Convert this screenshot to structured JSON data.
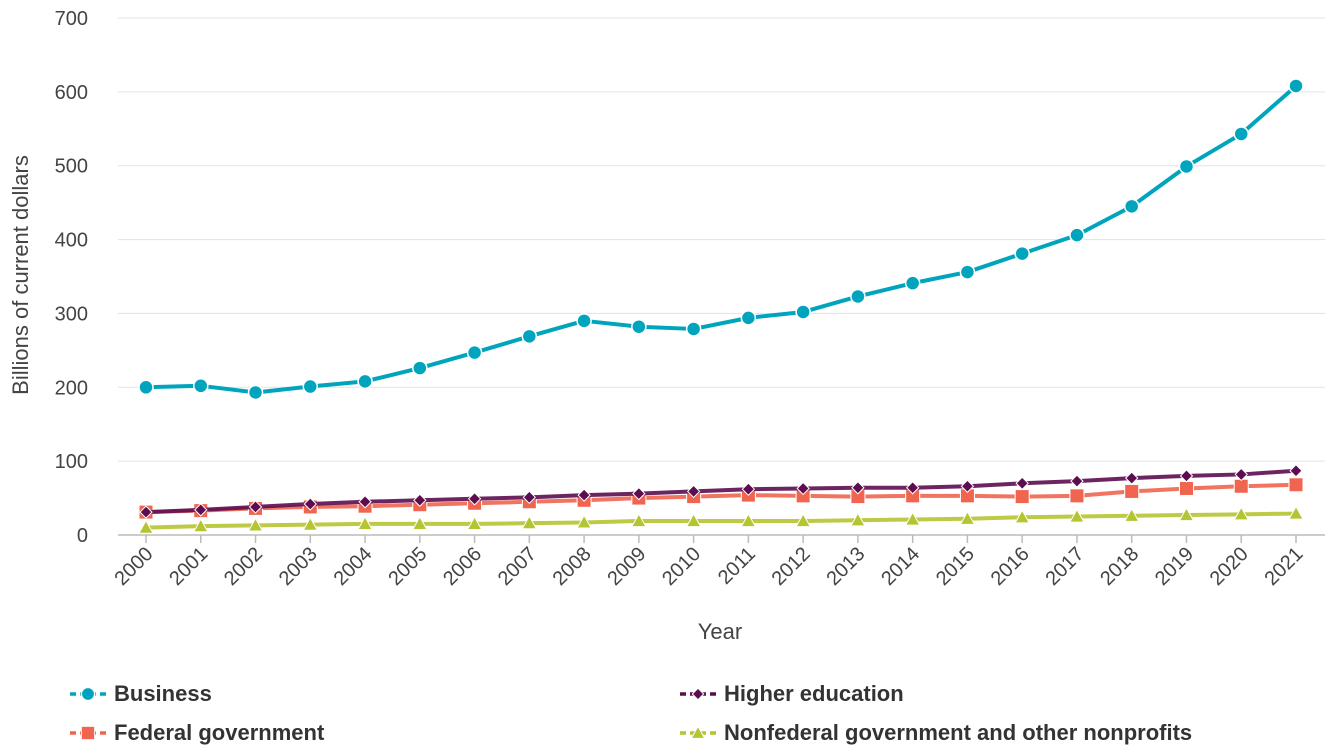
{
  "chart_data": {
    "type": "line",
    "title": "",
    "xlabel": "Year",
    "ylabel": "Billions of current dollars",
    "ylim": [
      0,
      700
    ],
    "yticks": [
      0,
      100,
      200,
      300,
      400,
      500,
      600,
      700
    ],
    "grid": true,
    "legend_position": "bottom",
    "x": [
      "2000",
      "2001",
      "2002",
      "2003",
      "2004",
      "2005",
      "2006",
      "2007",
      "2008",
      "2009",
      "2010",
      "2011",
      "2012",
      "2013",
      "2014",
      "2015",
      "2016",
      "2017",
      "2018",
      "2019",
      "2020",
      "2021"
    ],
    "series": [
      {
        "name": "Business",
        "color": "#00a5bd",
        "marker": "circle",
        "values": [
          200,
          202,
          193,
          201,
          208,
          226,
          247,
          269,
          290,
          282,
          279,
          294,
          302,
          323,
          341,
          356,
          381,
          406,
          445,
          499,
          543,
          608
        ]
      },
      {
        "name": "Higher education",
        "color": "#5c0d4f",
        "marker": "diamond",
        "values": [
          31,
          34,
          38,
          42,
          45,
          47,
          49,
          51,
          54,
          56,
          59,
          62,
          63,
          64,
          64,
          66,
          70,
          73,
          77,
          80,
          82,
          87
        ]
      },
      {
        "name": "Federal government",
        "color": "#f0654f",
        "marker": "square",
        "values": [
          31,
          33,
          36,
          38,
          39,
          41,
          43,
          45,
          47,
          50,
          52,
          54,
          53,
          52,
          53,
          53,
          52,
          53,
          59,
          63,
          66,
          68
        ]
      },
      {
        "name": "Nonfederal government and other nonprofits",
        "color": "#b5c431",
        "marker": "triangle",
        "values": [
          10,
          12,
          13,
          14,
          15,
          15,
          15,
          16,
          17,
          19,
          19,
          19,
          19,
          20,
          21,
          22,
          24,
          25,
          26,
          27,
          28,
          29
        ]
      }
    ]
  }
}
